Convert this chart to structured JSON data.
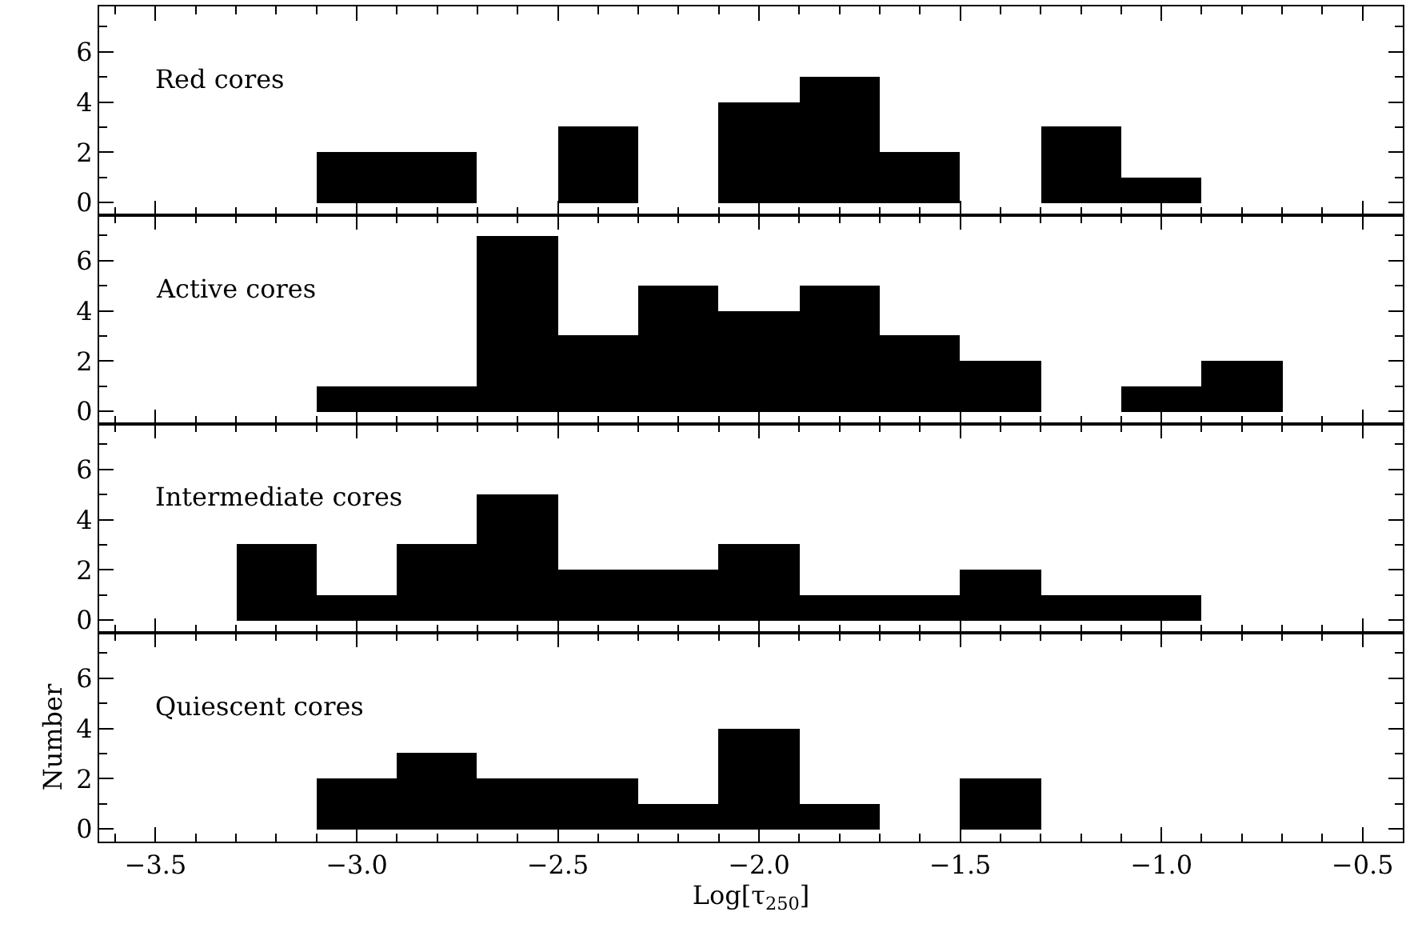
{
  "chart_data": [
    {
      "type": "histogram",
      "bins": [
        -3.3,
        -3.1,
        -2.9,
        -2.7,
        -2.5,
        -2.3,
        -2.1,
        -1.9,
        -1.7,
        -1.5,
        -1.3,
        -1.1,
        -0.9,
        -0.7
      ],
      "values": [
        0,
        2,
        2,
        0,
        3,
        0,
        4,
        5,
        2,
        0,
        3,
        1,
        0
      ],
      "color": "#000000",
      "annotations": [
        "Red cores"
      ],
      "xlim": [
        -3.64,
        -0.4
      ],
      "ylim": [
        -0.5,
        7.8
      ],
      "yticks": [
        0,
        2,
        4,
        6
      ],
      "xticks": [
        -3.5,
        -3.0,
        -2.5,
        -2.0,
        -1.5,
        -1.0,
        -0.5
      ],
      "tick_labels": "y"
    },
    {
      "type": "histogram",
      "bins": [
        -3.3,
        -3.1,
        -2.9,
        -2.7,
        -2.5,
        -2.3,
        -2.1,
        -1.9,
        -1.7,
        -1.5,
        -1.3,
        -1.1,
        -0.9,
        -0.7
      ],
      "values": [
        0,
        1,
        1,
        7,
        3,
        5,
        4,
        5,
        3,
        2,
        0,
        1,
        2
      ],
      "color": "#000000",
      "annotations": [
        "Active cores"
      ],
      "xlim": [
        -3.64,
        -0.4
      ],
      "ylim": [
        -0.5,
        7.8
      ],
      "yticks": [
        0,
        2,
        4,
        6
      ],
      "xticks": [
        -3.5,
        -3.0,
        -2.5,
        -2.0,
        -1.5,
        -1.0,
        -0.5
      ],
      "tick_labels": "y"
    },
    {
      "type": "histogram",
      "bins": [
        -3.3,
        -3.1,
        -2.9,
        -2.7,
        -2.5,
        -2.3,
        -2.1,
        -1.9,
        -1.7,
        -1.5,
        -1.3,
        -1.1,
        -0.9,
        -0.7
      ],
      "values": [
        3,
        1,
        3,
        5,
        2,
        2,
        3,
        1,
        1,
        2,
        1,
        1,
        0
      ],
      "color": "#000000",
      "annotations": [
        "Intermediate cores"
      ],
      "xlim": [
        -3.64,
        -0.4
      ],
      "ylim": [
        -0.5,
        7.8
      ],
      "yticks": [
        0,
        2,
        4,
        6
      ],
      "xticks": [
        -3.5,
        -3.0,
        -2.5,
        -2.0,
        -1.5,
        -1.0,
        -0.5
      ],
      "tick_labels": "y"
    },
    {
      "type": "histogram",
      "bins": [
        -3.3,
        -3.1,
        -2.9,
        -2.7,
        -2.5,
        -2.3,
        -2.1,
        -1.9,
        -1.7,
        -1.5,
        -1.3,
        -1.1,
        -0.9,
        -0.7
      ],
      "values": [
        0,
        2,
        3,
        2,
        2,
        1,
        4,
        1,
        0,
        2,
        0,
        0,
        0
      ],
      "color": "#000000",
      "annotations": [
        "Quiescent cores"
      ],
      "xlabel": "Log[τ$_{250}$]",
      "ylabel": "Number",
      "xlim": [
        -3.64,
        -0.4
      ],
      "ylim": [
        -0.5,
        7.8
      ],
      "yticks": [
        0,
        2,
        4,
        6
      ],
      "xticks": [
        {
          "value": -3.5,
          "label": "−3.5"
        },
        {
          "value": -3.0,
          "label": "−3.0"
        },
        {
          "value": -2.5,
          "label": "−2.5"
        },
        {
          "value": -2.0,
          "label": "−2.0"
        },
        {
          "value": -1.5,
          "label": "−1.5"
        },
        {
          "value": -1.0,
          "label": "−1.0"
        },
        {
          "value": -0.5,
          "label": "−0.5"
        }
      ]
    }
  ]
}
